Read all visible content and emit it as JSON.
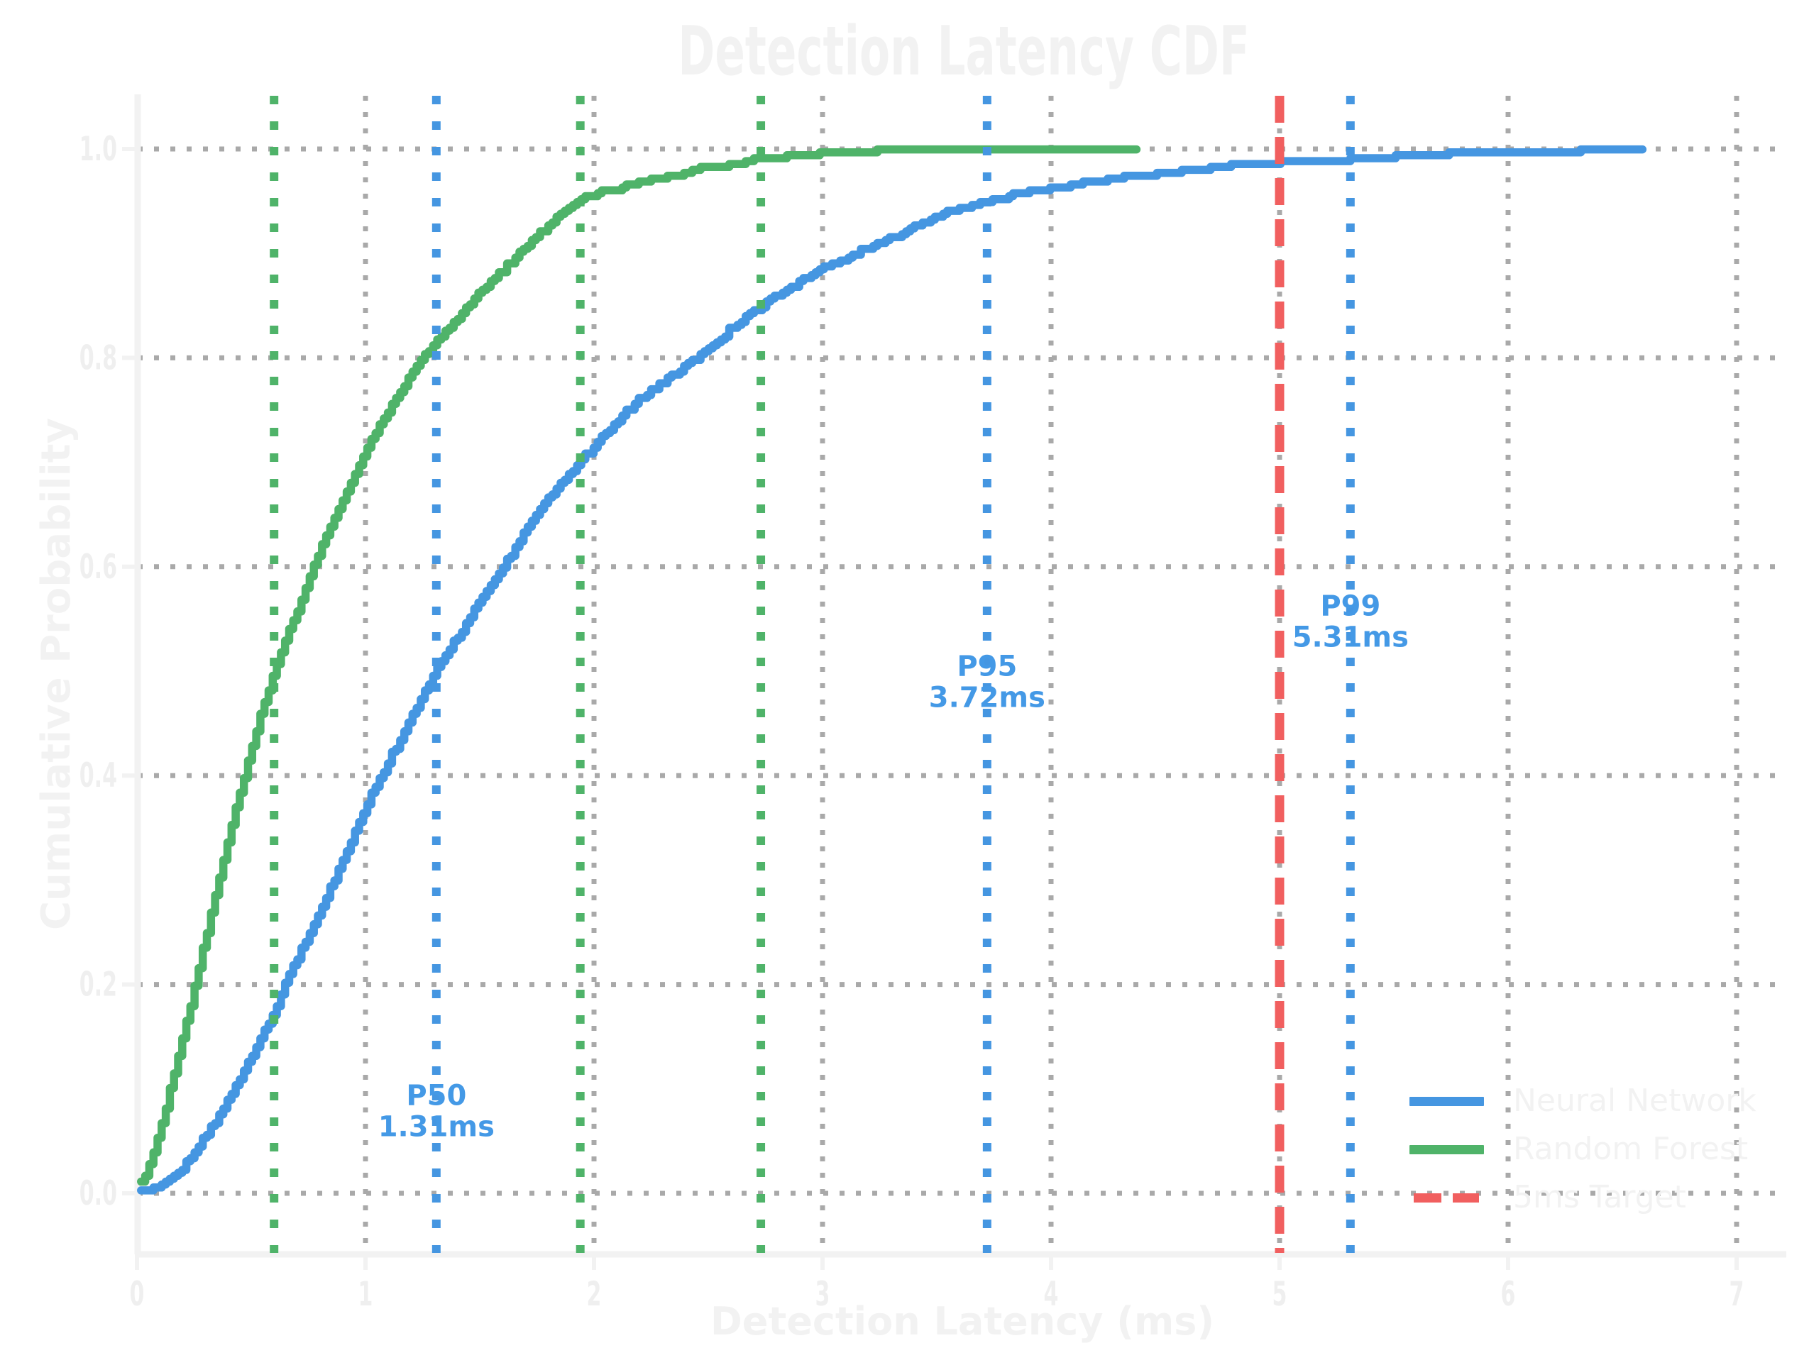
{
  "title": "Detection Latency CDF",
  "axes": {
    "xlabel": "Detection Latency (ms)",
    "ylabel": "Cumulative Probability",
    "x_ticks": [
      "0",
      "1",
      "2",
      "3",
      "4",
      "5",
      "6",
      "7"
    ],
    "y_ticks": [
      "0.0",
      "0.2",
      "0.4",
      "0.6",
      "0.8",
      "1.0"
    ],
    "xlim": [
      0,
      7.22
    ],
    "ylim": [
      -0.058,
      1.052
    ],
    "grid": "dotted"
  },
  "colors": {
    "neural_network": "#4596E1",
    "random_forest": "#4FB369",
    "target": "#F15F5F",
    "grid": "#A9A9A9",
    "faint_text": "#F2F2F2",
    "tick_text": "#EFEFEF",
    "spine": "#F2F2F2",
    "annotation_text": "#4499E6"
  },
  "legend": {
    "items": [
      {
        "label": "Neural Network",
        "color": "#4596E1",
        "style": "solid"
      },
      {
        "label": "Random Forest",
        "color": "#4FB369",
        "style": "solid"
      },
      {
        "label": "5ms Target",
        "color": "#F15F5F",
        "style": "dashed"
      }
    ]
  },
  "chart_data": {
    "type": "line",
    "subtype": "empirical-cdf",
    "title": "Detection Latency CDF",
    "xlabel": "Detection Latency (ms)",
    "ylabel": "Cumulative Probability",
    "xlim": [
      0,
      7.22
    ],
    "ylim": [
      -0.058,
      1.052
    ],
    "grid": true,
    "legend_position": "lower right",
    "series": [
      {
        "name": "Neural Network",
        "color": "#4596E1",
        "points": [
          [
            0,
            0
          ],
          [
            0.1,
            0.008
          ],
          [
            0.2,
            0.025
          ],
          [
            0.3,
            0.055
          ],
          [
            0.4,
            0.09
          ],
          [
            0.5,
            0.13
          ],
          [
            0.6,
            0.175
          ],
          [
            0.7,
            0.225
          ],
          [
            0.8,
            0.27
          ],
          [
            0.9,
            0.32
          ],
          [
            1.0,
            0.37
          ],
          [
            1.15,
            0.435
          ],
          [
            1.31,
            0.5
          ],
          [
            1.45,
            0.55
          ],
          [
            1.6,
            0.6
          ],
          [
            1.8,
            0.665
          ],
          [
            2.0,
            0.715
          ],
          [
            2.2,
            0.76
          ],
          [
            2.45,
            0.8
          ],
          [
            2.7,
            0.845
          ],
          [
            3.0,
            0.885
          ],
          [
            3.3,
            0.915
          ],
          [
            3.5,
            0.935
          ],
          [
            3.72,
            0.95
          ],
          [
            4.0,
            0.962
          ],
          [
            4.3,
            0.972
          ],
          [
            4.6,
            0.979
          ],
          [
            5.0,
            0.987
          ],
          [
            5.31,
            0.99
          ],
          [
            5.7,
            0.994
          ],
          [
            6.0,
            0.996
          ],
          [
            6.3,
            0.998
          ],
          [
            6.59,
            1.0
          ]
        ],
        "percentiles": [
          {
            "name": "P50",
            "value_ms": 1.31,
            "annotation_lines": [
              "P50",
              "1.31ms"
            ],
            "label_center_p": 0.079
          },
          {
            "name": "P95",
            "value_ms": 3.72,
            "annotation_lines": [
              "P95",
              "3.72ms"
            ],
            "label_center_p": 0.49
          },
          {
            "name": "P99",
            "value_ms": 5.31,
            "annotation_lines": [
              "P99",
              "5.31ms"
            ],
            "label_center_p": 0.548
          }
        ]
      },
      {
        "name": "Random Forest",
        "color": "#4FB369",
        "points": [
          [
            0,
            0
          ],
          [
            0.05,
            0.025
          ],
          [
            0.1,
            0.06
          ],
          [
            0.15,
            0.105
          ],
          [
            0.2,
            0.15
          ],
          [
            0.3,
            0.245
          ],
          [
            0.4,
            0.34
          ],
          [
            0.5,
            0.425
          ],
          [
            0.6,
            0.5
          ],
          [
            0.7,
            0.558
          ],
          [
            0.8,
            0.615
          ],
          [
            0.9,
            0.665
          ],
          [
            1.0,
            0.71
          ],
          [
            1.1,
            0.75
          ],
          [
            1.2,
            0.785
          ],
          [
            1.35,
            0.825
          ],
          [
            1.5,
            0.862
          ],
          [
            1.7,
            0.905
          ],
          [
            1.94,
            0.95
          ],
          [
            2.1,
            0.962
          ],
          [
            2.3,
            0.972
          ],
          [
            2.5,
            0.982
          ],
          [
            2.73,
            0.99
          ],
          [
            3.0,
            0.995
          ],
          [
            3.3,
            0.998
          ],
          [
            3.7,
            0.999
          ],
          [
            4.38,
            1.0
          ]
        ],
        "percentiles": [
          {
            "name": "P50",
            "value_ms": 0.6
          },
          {
            "name": "P95",
            "value_ms": 1.94
          },
          {
            "name": "P99",
            "value_ms": 2.73
          }
        ]
      }
    ],
    "target_line": {
      "label": "5ms Target",
      "value_ms": 5.0,
      "color": "#F15F5F",
      "style": "dashed"
    }
  }
}
